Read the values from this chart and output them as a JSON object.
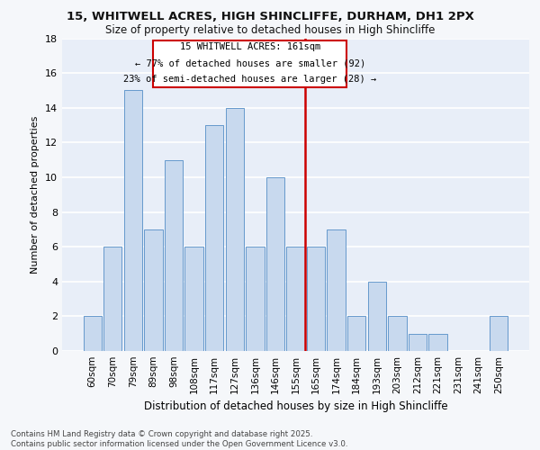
{
  "title_line1": "15, WHITWELL ACRES, HIGH SHINCLIFFE, DURHAM, DH1 2PX",
  "title_line2": "Size of property relative to detached houses in High Shincliffe",
  "xlabel": "Distribution of detached houses by size in High Shincliffe",
  "ylabel": "Number of detached properties",
  "categories": [
    "60sqm",
    "70sqm",
    "79sqm",
    "89sqm",
    "98sqm",
    "108sqm",
    "117sqm",
    "127sqm",
    "136sqm",
    "146sqm",
    "155sqm",
    "165sqm",
    "174sqm",
    "184sqm",
    "193sqm",
    "203sqm",
    "212sqm",
    "221sqm",
    "231sqm",
    "241sqm",
    "250sqm"
  ],
  "values": [
    2,
    6,
    15,
    7,
    11,
    6,
    13,
    14,
    6,
    10,
    6,
    6,
    7,
    2,
    4,
    2,
    1,
    1,
    0,
    0,
    2
  ],
  "bar_color": "#c8d9ee",
  "bar_edgecolor": "#6699cc",
  "highlight_line_color": "#cc0000",
  "highlight_line_label": "15 WHITWELL ACRES: 161sqm",
  "annotation_text_line1": "← 77% of detached houses are smaller (92)",
  "annotation_text_line2": "23% of semi-detached houses are larger (28) →",
  "annotation_box_color": "#cc0000",
  "ylim": [
    0,
    18
  ],
  "yticks": [
    0,
    2,
    4,
    6,
    8,
    10,
    12,
    14,
    16,
    18
  ],
  "footer_line1": "Contains HM Land Registry data © Crown copyright and database right 2025.",
  "footer_line2": "Contains public sector information licensed under the Open Government Licence v3.0.",
  "plot_bg_color": "#e8eef8",
  "fig_bg_color": "#f5f7fa",
  "grid_color": "#ffffff"
}
